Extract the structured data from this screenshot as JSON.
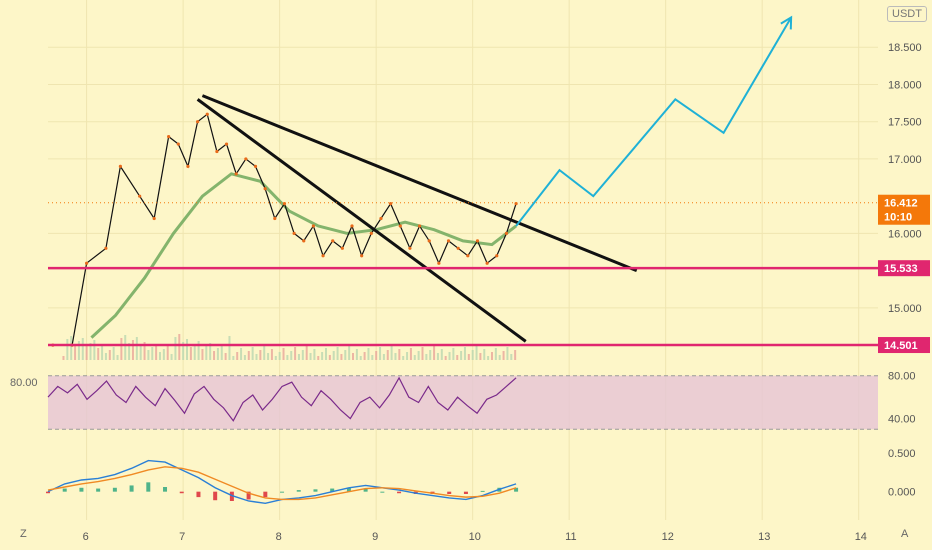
{
  "chart_data": {
    "type": "line",
    "currency": "USDT",
    "price_axis": {
      "ticks": [
        "18.500",
        "18.000",
        "17.500",
        "17.000",
        "16.000",
        "15.000"
      ],
      "tick_values": [
        18.5,
        18.0,
        17.5,
        17.0,
        16.0,
        15.0
      ],
      "range": [
        14.3,
        19.0
      ]
    },
    "x_axis": {
      "ticks": [
        "6",
        "7",
        "8",
        "9",
        "10",
        "11",
        "12",
        "13",
        "14"
      ],
      "range": [
        5.6,
        14.2
      ]
    },
    "last_price": {
      "value": 16.412,
      "label": "16.412",
      "countdown": "10:10",
      "color": "#f4780a"
    },
    "horizontal_levels": [
      {
        "value": 15.533,
        "label": "15.533",
        "color": "#e0266f"
      },
      {
        "value": 14.501,
        "label": "14.501",
        "color": "#e0266f"
      }
    ],
    "trendlines": [
      {
        "from": [
          7.2,
          17.85
        ],
        "to": [
          11.7,
          15.5
        ]
      },
      {
        "from": [
          7.15,
          17.8
        ],
        "to": [
          10.55,
          14.55
        ]
      }
    ],
    "projection": {
      "color": "#1fb1d6",
      "points": [
        [
          10.45,
          16.1
        ],
        [
          10.9,
          16.85
        ],
        [
          11.25,
          16.5
        ],
        [
          12.1,
          17.8
        ],
        [
          12.6,
          17.35
        ],
        [
          13.3,
          18.9
        ]
      ]
    },
    "price_series": [
      [
        5.65,
        14.5
      ],
      [
        5.85,
        14.5
      ],
      [
        6.0,
        15.6
      ],
      [
        6.2,
        15.8
      ],
      [
        6.35,
        16.9
      ],
      [
        6.55,
        16.5
      ],
      [
        6.7,
        16.2
      ],
      [
        6.85,
        17.3
      ],
      [
        6.95,
        17.2
      ],
      [
        7.05,
        16.9
      ],
      [
        7.15,
        17.5
      ],
      [
        7.25,
        17.6
      ],
      [
        7.35,
        17.1
      ],
      [
        7.45,
        17.2
      ],
      [
        7.55,
        16.8
      ],
      [
        7.65,
        17.0
      ],
      [
        7.75,
        16.9
      ],
      [
        7.85,
        16.6
      ],
      [
        7.95,
        16.2
      ],
      [
        8.05,
        16.4
      ],
      [
        8.15,
        16.0
      ],
      [
        8.25,
        15.9
      ],
      [
        8.35,
        16.1
      ],
      [
        8.45,
        15.7
      ],
      [
        8.55,
        15.9
      ],
      [
        8.65,
        15.8
      ],
      [
        8.75,
        16.1
      ],
      [
        8.85,
        15.7
      ],
      [
        8.95,
        16.0
      ],
      [
        9.05,
        16.2
      ],
      [
        9.15,
        16.4
      ],
      [
        9.25,
        16.1
      ],
      [
        9.35,
        15.8
      ],
      [
        9.45,
        16.1
      ],
      [
        9.55,
        15.9
      ],
      [
        9.65,
        15.6
      ],
      [
        9.75,
        15.9
      ],
      [
        9.85,
        15.8
      ],
      [
        9.95,
        15.7
      ],
      [
        10.05,
        15.9
      ],
      [
        10.15,
        15.6
      ],
      [
        10.25,
        15.7
      ],
      [
        10.35,
        16.0
      ],
      [
        10.45,
        16.4
      ]
    ],
    "moving_average": [
      [
        6.05,
        14.6
      ],
      [
        6.3,
        14.9
      ],
      [
        6.6,
        15.4
      ],
      [
        6.9,
        16.0
      ],
      [
        7.2,
        16.5
      ],
      [
        7.5,
        16.8
      ],
      [
        7.8,
        16.7
      ],
      [
        8.1,
        16.3
      ],
      [
        8.4,
        16.1
      ],
      [
        8.7,
        16.0
      ],
      [
        9.0,
        16.05
      ],
      [
        9.3,
        16.15
      ],
      [
        9.6,
        16.05
      ],
      [
        9.9,
        15.9
      ],
      [
        10.2,
        15.85
      ],
      [
        10.45,
        16.1
      ]
    ],
    "indicators": {
      "rsi": {
        "ticks": [
          "80.00",
          "40.00"
        ],
        "left_label": "80.00",
        "range": [
          20,
          90
        ],
        "band": [
          30,
          80
        ],
        "values": [
          60,
          70,
          64,
          72,
          58,
          66,
          75,
          62,
          55,
          70,
          60,
          52,
          68,
          57,
          45,
          63,
          70,
          58,
          50,
          38,
          55,
          62,
          48,
          58,
          70,
          74,
          60,
          52,
          66,
          58,
          48,
          40,
          55,
          60,
          50,
          62,
          78,
          60,
          55,
          70,
          55,
          48,
          60,
          52,
          45,
          58,
          62,
          70,
          78
        ]
      },
      "macd": {
        "ticks": [
          "0.500",
          "0.000"
        ],
        "range": [
          -0.3,
          0.6
        ],
        "macd": [
          0.0,
          0.1,
          0.15,
          0.17,
          0.22,
          0.3,
          0.4,
          0.38,
          0.28,
          0.18,
          0.05,
          -0.05,
          -0.12,
          -0.15,
          -0.1,
          -0.08,
          -0.05,
          0.0,
          0.05,
          0.08,
          0.05,
          0.02,
          -0.02,
          -0.05,
          -0.08,
          -0.1,
          -0.05,
          0.03,
          0.1
        ],
        "signal": [
          0.02,
          0.06,
          0.1,
          0.13,
          0.17,
          0.22,
          0.28,
          0.32,
          0.3,
          0.25,
          0.16,
          0.07,
          -0.02,
          -0.08,
          -0.1,
          -0.1,
          -0.08,
          -0.04,
          0.0,
          0.04,
          0.05,
          0.04,
          0.01,
          -0.02,
          -0.05,
          -0.07,
          -0.06,
          -0.02,
          0.05
        ]
      }
    }
  },
  "ui": {
    "unit_label": "USDT",
    "bottom_left": "Z",
    "bottom_right": "A"
  }
}
